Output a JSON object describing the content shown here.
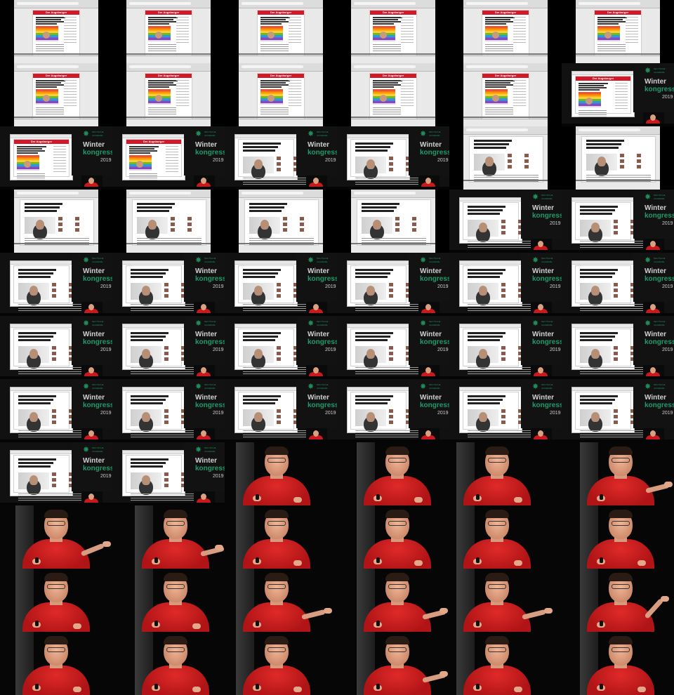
{
  "mosaic": {
    "columns": 6,
    "rows": 11,
    "tiles": [
      {
        "kind": "browser-news"
      },
      {
        "kind": "browser-news"
      },
      {
        "kind": "browser-news"
      },
      {
        "kind": "browser-news"
      },
      {
        "kind": "browser-news"
      },
      {
        "kind": "browser-news"
      },
      {
        "kind": "browser-news"
      },
      {
        "kind": "browser-news"
      },
      {
        "kind": "browser-news"
      },
      {
        "kind": "browser-news-dark"
      },
      {
        "kind": "browser-news-dark"
      },
      {
        "kind": "slide-news"
      },
      {
        "kind": "slide-news"
      },
      {
        "kind": "slide-news"
      },
      {
        "kind": "slide-article"
      },
      {
        "kind": "slide-article"
      },
      {
        "kind": "browser-article"
      },
      {
        "kind": "browser-article"
      },
      {
        "kind": "browser-article"
      },
      {
        "kind": "browser-article"
      },
      {
        "kind": "browser-article"
      },
      {
        "kind": "browser-article"
      },
      {
        "kind": "slide-article"
      },
      {
        "kind": "slide-article"
      },
      {
        "kind": "slide-article"
      },
      {
        "kind": "slide-article"
      },
      {
        "kind": "slide-article"
      },
      {
        "kind": "slide-article"
      },
      {
        "kind": "slide-article"
      },
      {
        "kind": "slide-article"
      },
      {
        "kind": "slide-article"
      },
      {
        "kind": "slide-article"
      },
      {
        "kind": "slide-article"
      },
      {
        "kind": "slide-article"
      },
      {
        "kind": "slide-article"
      },
      {
        "kind": "slide-article"
      },
      {
        "kind": "slide-article"
      },
      {
        "kind": "slide-article"
      },
      {
        "kind": "slide-article"
      },
      {
        "kind": "slide-article"
      },
      {
        "kind": "slide-article"
      },
      {
        "kind": "slide-article"
      },
      {
        "kind": "slide-article"
      },
      {
        "kind": "slide-article"
      },
      {
        "kind": "speaker",
        "pose": "remote"
      },
      {
        "kind": "speaker",
        "pose": "remote"
      },
      {
        "kind": "speaker",
        "pose": "remote"
      },
      {
        "kind": "speaker",
        "pose": "gesture-right"
      },
      {
        "kind": "speaker",
        "pose": "gesture-wide"
      },
      {
        "kind": "speaker",
        "pose": "gesture-right"
      },
      {
        "kind": "speaker",
        "pose": "remote"
      },
      {
        "kind": "speaker",
        "pose": "remote"
      },
      {
        "kind": "speaker",
        "pose": "remote"
      },
      {
        "kind": "speaker",
        "pose": "remote"
      },
      {
        "kind": "speaker",
        "pose": "remote"
      },
      {
        "kind": "speaker",
        "pose": "remote"
      },
      {
        "kind": "speaker",
        "pose": "gesture-right"
      },
      {
        "kind": "speaker",
        "pose": "gesture-right"
      },
      {
        "kind": "speaker",
        "pose": "gesture-right"
      },
      {
        "kind": "speaker",
        "pose": "gesture-up"
      },
      {
        "kind": "speaker",
        "pose": "remote"
      },
      {
        "kind": "speaker",
        "pose": "remote"
      },
      {
        "kind": "speaker",
        "pose": "remote"
      },
      {
        "kind": "speaker",
        "pose": "gesture-right"
      },
      {
        "kind": "speaker",
        "pose": "remote"
      },
      {
        "kind": "speaker",
        "pose": "remote"
      }
    ]
  },
  "slide": {
    "conference_logo_small": "DEUTSCHE\nAKADEMIE",
    "title_line1": "Winter",
    "title_line2": "kongress",
    "year": "2019"
  },
  "news_site": {
    "masthead": "Der Augsburger"
  },
  "colors": {
    "brand_red": "#d3182a",
    "conference_green": "#1f9a6a",
    "shirt_red": "#c8191c"
  }
}
